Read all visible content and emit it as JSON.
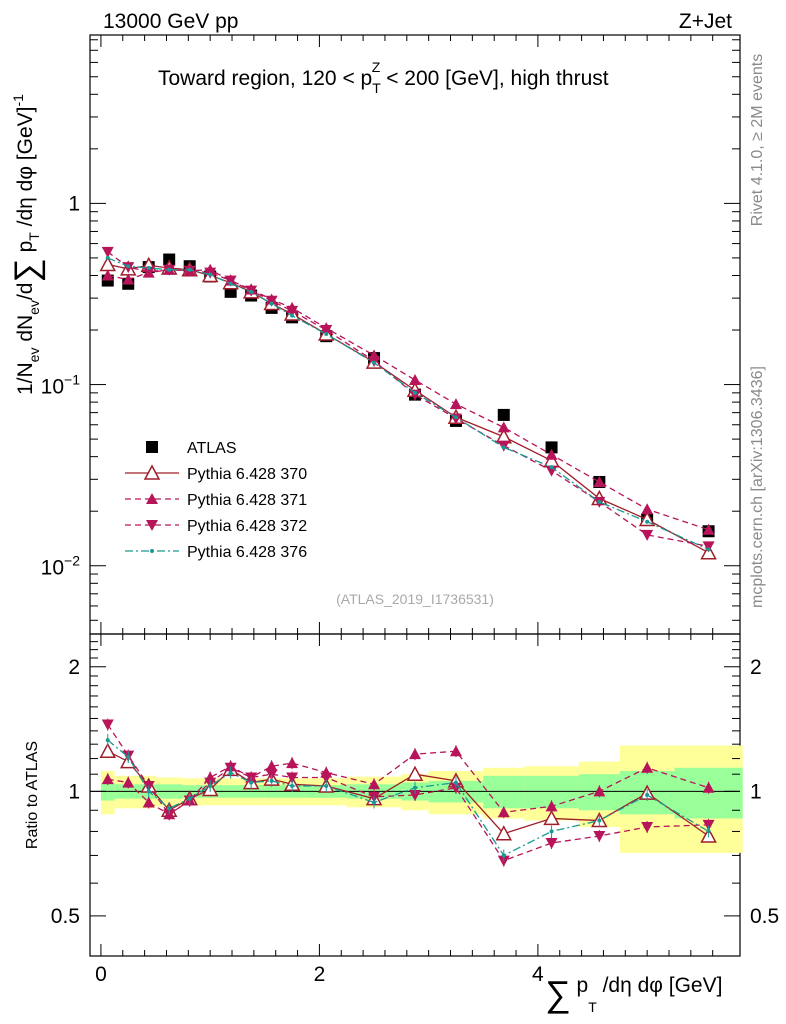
{
  "header": {
    "left": "13000 GeV pp",
    "right": "Z+Jet"
  },
  "side": {
    "rivet": "Rivet 4.1.0, ≥ 2M events",
    "mcplots": "mcplots.cern.ch [arXiv:1306.3436]"
  },
  "colors": {
    "atlas": "#000000",
    "p370": "#a01e2a",
    "p371": "#b8145a",
    "p372": "#b8145a",
    "p376": "#1a9a94",
    "band_yellow": "#ffff99",
    "band_green": "#99ff99"
  },
  "chart_data": [
    {
      "type": "scatter",
      "panel": "main",
      "title": "Toward region, 120 < p_T^Z < 200 [GeV], high thrust",
      "title_parts": {
        "a": "Toward region, 120 < p",
        "sub": "T",
        "sup": "Z",
        "b": " < 200 [GeV], high thrust"
      },
      "ylabel": "1/N_ev dN_ev/d∑ p_T /dη dφ [GeV]^-1",
      "ylabel_parts": {
        "a": "1/N",
        "sub1": "ev",
        "b": " dN",
        "sub2": "ev",
        "c": "/d",
        "sum": "∑",
        "d": " p",
        "sub3": "T",
        "e": " /dη dφ  [GeV]",
        "sup": "-1"
      },
      "yscale": "log",
      "ylim": [
        0.0042,
        8.5
      ],
      "xlim": [
        -0.1,
        5.85
      ],
      "yticks": [
        {
          "value": 1,
          "label": "1",
          "base": "",
          "exp": ""
        },
        {
          "value": 0.1,
          "label": "",
          "base": "10",
          "exp": "−1"
        },
        {
          "value": 0.01,
          "label": "",
          "base": "10",
          "exp": "−2"
        }
      ],
      "watermark": "(ATLAS_2019_I1736531)",
      "legend_position": "center-left",
      "x": [
        0.0625,
        0.25,
        0.4375,
        0.625,
        0.8125,
        1.0,
        1.1875,
        1.375,
        1.5625,
        1.75,
        2.0625,
        2.5,
        2.875,
        3.25,
        3.6875,
        4.125,
        4.5625,
        5.0,
        5.5625
      ],
      "series": [
        {
          "name": "ATLAS",
          "key": "atlas",
          "marker": "square",
          "values": [
            0.375,
            0.36,
            0.445,
            0.49,
            0.45,
            0.395,
            0.325,
            0.31,
            0.265,
            0.235,
            0.185,
            0.14,
            0.088,
            0.063,
            0.068,
            0.045,
            0.029,
            0.018,
            0.0155
          ]
        },
        {
          "name": "Pythia 6.428 370",
          "key": "p370",
          "marker": "open-triangle-up",
          "line": "solid",
          "values": [
            0.46,
            0.435,
            0.455,
            0.44,
            0.43,
            0.4,
            0.365,
            0.325,
            0.28,
            0.245,
            0.19,
            0.133,
            0.093,
            0.066,
            0.0515,
            0.038,
            0.0235,
            0.018,
            0.0118
          ]
        },
        {
          "name": "Pythia 6.428 371",
          "key": "p371",
          "marker": "triangle-up",
          "line": "dashed",
          "values": [
            0.4,
            0.38,
            0.415,
            0.43,
            0.425,
            0.43,
            0.375,
            0.335,
            0.295,
            0.265,
            0.205,
            0.145,
            0.106,
            0.078,
            0.058,
            0.041,
            0.029,
            0.0205,
            0.0158
          ]
        },
        {
          "name": "Pythia 6.428 372",
          "key": "p372",
          "marker": "triangle-down",
          "line": "dashed",
          "values": [
            0.54,
            0.445,
            0.42,
            0.43,
            0.425,
            0.415,
            0.375,
            0.33,
            0.29,
            0.255,
            0.2,
            0.135,
            0.088,
            0.065,
            0.046,
            0.0335,
            0.0225,
            0.0148,
            0.0128
          ]
        },
        {
          "name": "Pythia 6.428 376",
          "key": "p376",
          "marker": "dot",
          "line": "dashdot",
          "values": [
            0.5,
            0.45,
            0.44,
            0.43,
            0.43,
            0.405,
            0.36,
            0.325,
            0.28,
            0.24,
            0.19,
            0.132,
            0.09,
            0.066,
            0.045,
            0.035,
            0.0225,
            0.0175,
            0.0123
          ]
        }
      ]
    },
    {
      "type": "scatter",
      "panel": "ratio",
      "ylabel": "Ratio to ATLAS",
      "xlabel": "∑ p_T /dη dφ [GeV]",
      "xlabel_parts": {
        "sum": "∑",
        "a": " p",
        "sub": "T",
        "b": " /dη dφ [GeV]"
      },
      "yscale": "log",
      "ylim": [
        0.4,
        2.4
      ],
      "xlim": [
        -0.1,
        5.85
      ],
      "xticks": [
        0,
        2,
        4
      ],
      "yticks": [
        {
          "value": 0.5,
          "label": "0.5"
        },
        {
          "value": 1,
          "label": "1"
        },
        {
          "value": 2,
          "label": "2"
        }
      ],
      "x": [
        0.0625,
        0.25,
        0.4375,
        0.625,
        0.8125,
        1.0,
        1.1875,
        1.375,
        1.5625,
        1.75,
        2.0625,
        2.5,
        2.875,
        3.25,
        3.6875,
        4.125,
        4.5625,
        5.0,
        5.5625
      ],
      "bins": [
        0,
        0.125,
        0.375,
        0.5,
        0.75,
        0.875,
        1.125,
        1.25,
        1.5,
        1.625,
        1.875,
        2.25,
        2.75,
        3.0,
        3.5,
        3.875,
        4.375,
        4.75,
        5.25,
        5.875
      ],
      "bands": {
        "green_half_width": [
          0.05,
          0.04,
          0.04,
          0.04,
          0.035,
          0.035,
          0.035,
          0.035,
          0.035,
          0.035,
          0.035,
          0.04,
          0.05,
          0.06,
          0.09,
          0.09,
          0.1,
          0.12,
          0.14
        ],
        "yellow_half_width": [
          0.12,
          0.09,
          0.09,
          0.08,
          0.075,
          0.075,
          0.075,
          0.075,
          0.075,
          0.075,
          0.075,
          0.085,
          0.1,
          0.12,
          0.14,
          0.15,
          0.18,
          0.29,
          0.29
        ]
      },
      "series": [
        {
          "name": "Pythia 6.428 370",
          "key": "p370",
          "values": [
            1.25,
            1.18,
            1.03,
            0.9,
            0.96,
            1.01,
            1.13,
            1.05,
            1.07,
            1.04,
            1.03,
            0.96,
            1.1,
            1.06,
            0.79,
            0.86,
            0.85,
            0.99,
            0.78
          ]
        },
        {
          "name": "Pythia 6.428 371",
          "key": "p371",
          "values": [
            1.07,
            1.05,
            0.94,
            0.88,
            0.95,
            1.08,
            1.15,
            1.08,
            1.15,
            1.17,
            1.11,
            1.04,
            1.23,
            1.25,
            0.89,
            0.92,
            1.0,
            1.14,
            1.02
          ]
        },
        {
          "name": "Pythia 6.428 372",
          "key": "p372",
          "values": [
            1.45,
            1.22,
            1.03,
            0.88,
            0.95,
            1.05,
            1.14,
            1.08,
            1.1,
            1.08,
            1.08,
            0.97,
            0.98,
            1.02,
            0.68,
            0.75,
            0.78,
            0.82,
            0.83
          ]
        },
        {
          "name": "Pythia 6.428 376",
          "key": "p376",
          "values": [
            1.33,
            1.21,
            1.0,
            0.91,
            0.96,
            1.03,
            1.11,
            1.05,
            1.06,
            1.03,
            1.03,
            0.94,
            1.02,
            1.05,
            0.7,
            0.8,
            0.85,
            0.98,
            0.8
          ]
        }
      ]
    }
  ]
}
